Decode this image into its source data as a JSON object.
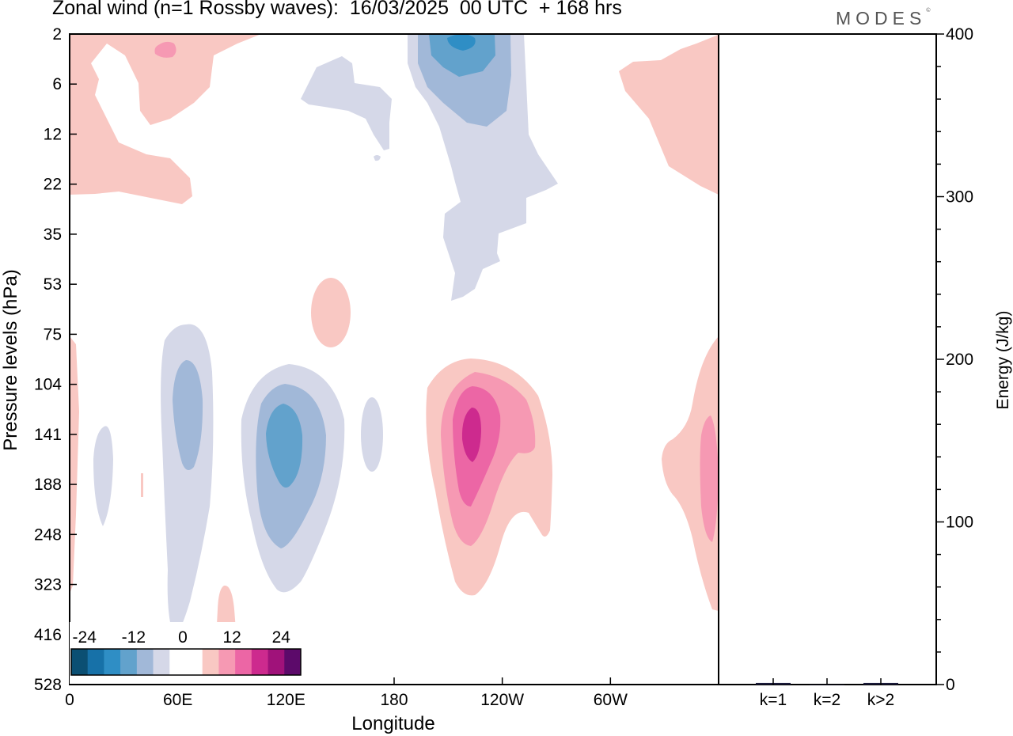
{
  "title": "Zonal wind (n=1 Rossby waves):  16/03/2025  00 UTC  + 168 hrs",
  "brand": "MODES",
  "brand_mark": "©",
  "colors": {
    "neg4": "#0b4f73",
    "neg3": "#1771a8",
    "neg2": "#2f8ec5",
    "neg1": "#62a2cc",
    "neg05": "#a1b8d8",
    "neg0": "#d5d8e8",
    "zero": "#ffffff",
    "pos0": "#f9c8c3",
    "pos05": "#f699b3",
    "pos1": "#ec66a5",
    "pos2": "#cd2a8e",
    "pos3": "#a0127a",
    "pos4": "#5c0a6a"
  },
  "chart_data": [
    {
      "type": "heatmap",
      "title": "Zonal wind (n=1 Rossby waves):  16/03/2025  00 UTC  + 168 hrs",
      "xlabel": "Longitude",
      "ylabel": "Pressure levels (hPa)",
      "x_ticks": [
        "0",
        "60E",
        "120E",
        "180",
        "120W",
        "60W"
      ],
      "y_ticks": [
        "2",
        "6",
        "12",
        "22",
        "35",
        "53",
        "75",
        "104",
        "141",
        "188",
        "248",
        "323",
        "416",
        "528"
      ],
      "colorbar": {
        "tick_labels": [
          "-24",
          "-12",
          "0",
          "12",
          "24"
        ],
        "colors": [
          "#0b4f73",
          "#1771a8",
          "#2f8ec5",
          "#62a2cc",
          "#a1b8d8",
          "#d5d8e8",
          "#ffffff",
          "#ffffff",
          "#f9c8c3",
          "#f699b3",
          "#ec66a5",
          "#cd2a8e",
          "#a0127a",
          "#5c0a6a"
        ]
      },
      "features": [
        {
          "sign": "negative",
          "lon": 215,
          "level": 2,
          "peak": -20
        },
        {
          "sign": "negative",
          "lon": 180,
          "level": 6,
          "peak": -4
        },
        {
          "sign": "negative",
          "lon": 65,
          "level": 125,
          "peak": -10
        },
        {
          "sign": "negative",
          "lon": 120,
          "level": 141,
          "peak": -14
        },
        {
          "sign": "negative",
          "lon": 18,
          "level": 170,
          "peak": -4
        },
        {
          "sign": "negative",
          "lon": 166,
          "level": 141,
          "peak": -4
        },
        {
          "sign": "positive",
          "lon": 225,
          "level": 141,
          "peak": 20
        },
        {
          "sign": "positive",
          "lon": 350,
          "level": 180,
          "peak": 8
        },
        {
          "sign": "positive",
          "lon": 40,
          "level": 4,
          "peak": 6
        },
        {
          "sign": "positive",
          "lon": 330,
          "level": 10,
          "peak": 4
        },
        {
          "sign": "positive",
          "lon": 148,
          "level": 60,
          "peak": 4
        },
        {
          "sign": "positive",
          "lon": 2,
          "level": 180,
          "peak": 4
        },
        {
          "sign": "positive",
          "lon": 88,
          "level": 470,
          "peak": 4
        }
      ]
    },
    {
      "type": "bar",
      "categories": [
        "k=1",
        "k=2",
        "k>2"
      ],
      "values": [
        1,
        0,
        1
      ],
      "ylabel": "Energy (J/kg)",
      "ylim": [
        0,
        400
      ],
      "y_ticks": [
        "0",
        "100",
        "200",
        "300",
        "400"
      ]
    }
  ]
}
